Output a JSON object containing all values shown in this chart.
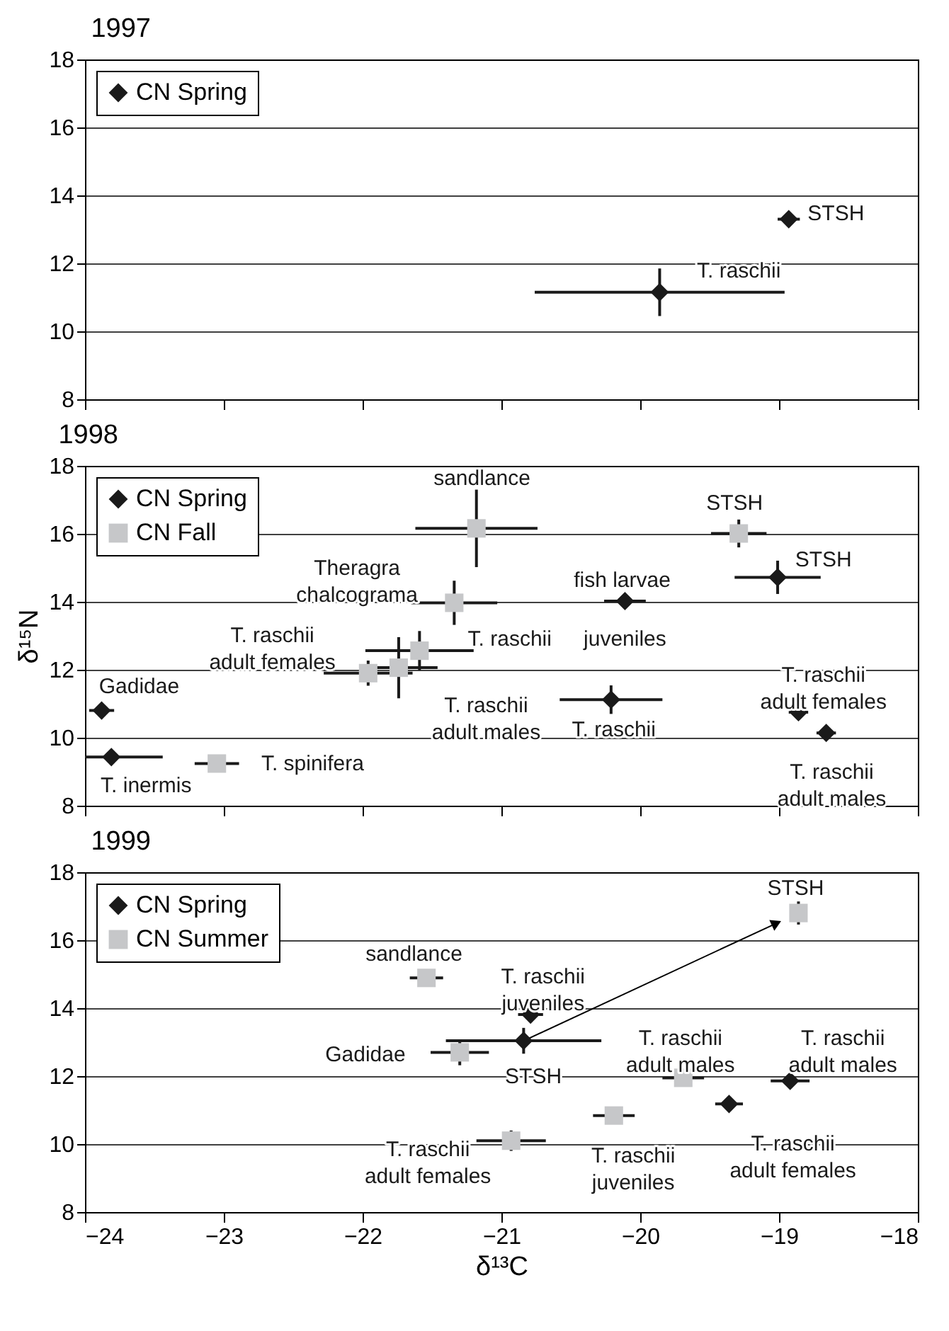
{
  "chart_data": [
    {
      "type": "scatter",
      "title": "1997",
      "xlim": [
        -24,
        -18
      ],
      "xticks": [
        -24,
        -23,
        -22,
        -21,
        -20,
        -19,
        -18
      ],
      "ylim": [
        8,
        18
      ],
      "yticks": [
        8,
        10,
        12,
        14,
        16,
        18
      ],
      "grid": "y",
      "legend": "top left",
      "tick_labels": "y",
      "series": [
        {
          "name": "CN Spring",
          "color": "#1a1a1a",
          "marker": "diamond",
          "x": [
            -19.86,
            -18.93
          ],
          "values": [
            11.15,
            13.3
          ],
          "errors": [
            0.7,
            null
          ],
          "xerrors": [
            0.9,
            0.08
          ]
        }
      ],
      "annotations": [
        "STSH",
        "T. raschii"
      ]
    },
    {
      "type": "scatter",
      "title": "1998",
      "ylabel": "δ¹⁵N",
      "xlim": [
        -24,
        -18
      ],
      "xticks": [
        -24,
        -23,
        -22,
        -21,
        -20,
        -19,
        -18
      ],
      "ylim": [
        8,
        18
      ],
      "yticks": [
        8,
        10,
        12,
        14,
        16,
        18
      ],
      "grid": "y",
      "legend": "top left",
      "tick_labels": "y",
      "series": [
        {
          "name": "CN Spring",
          "color": "#1a1a1a",
          "marker": "diamond",
          "x": [
            -23.88,
            -23.81,
            -20.11,
            -20.21,
            -19.01,
            -18.86,
            -18.66
          ],
          "values": [
            10.8,
            9.43,
            14.02,
            11.12,
            14.72,
            10.75,
            10.14
          ],
          "errors": [
            null,
            null,
            null,
            0.42,
            0.49,
            null,
            null
          ],
          "xerrors": [
            0.09,
            0.37,
            0.15,
            0.37,
            0.31,
            0.07,
            0.07
          ]
        },
        {
          "name": "CN Fall",
          "color": "#c6c7c9",
          "marker": "square",
          "x": [
            -21.18,
            -19.29,
            -21.34,
            -21.59,
            -21.96,
            -21.74,
            -23.05
          ],
          "values": [
            16.16,
            16.01,
            13.97,
            12.56,
            11.9,
            12.06,
            9.24
          ],
          "errors": [
            1.14,
            0.41,
            0.65,
            0.58,
            0.37,
            0.9,
            null
          ],
          "xerrors": [
            0.44,
            0.2,
            0.31,
            0.39,
            0.32,
            0.28,
            0.16
          ]
        }
      ],
      "annotations": [
        "sandlance",
        "STSH",
        "STSH",
        "Theragra\nchalcograma",
        "fish larvae",
        "T. raschii\nadult females",
        "T. raschii",
        "juveniles",
        "T. raschii\nadult females",
        "Gadidae",
        "T. raschii\nadult males",
        "T. raschii",
        "T. raschii\nadult males",
        "T. spinifera",
        "T. inermis"
      ]
    },
    {
      "type": "scatter",
      "title": "1999",
      "xlabel": "δ¹³C",
      "xlim": [
        -24,
        -18
      ],
      "xticks": [
        -24,
        -23,
        -22,
        -21,
        -20,
        -19,
        -18
      ],
      "ylim": [
        8,
        18
      ],
      "yticks": [
        8,
        10,
        12,
        14,
        16,
        18
      ],
      "grid": "y",
      "legend": "top left",
      "series": [
        {
          "name": "CN Spring",
          "color": "#1a1a1a",
          "marker": "diamond",
          "x": [
            -20.84,
            -20.79,
            -18.92,
            -19.36
          ],
          "values": [
            13.04,
            13.81,
            11.86,
            11.18
          ],
          "errors": [
            0.38,
            null,
            null,
            null
          ],
          "xerrors": [
            0.56,
            0.09,
            0.14,
            0.1
          ]
        },
        {
          "name": "CN Summer",
          "color": "#c6c7c9",
          "marker": "square",
          "x": [
            -18.86,
            -21.54,
            -21.3,
            -19.69,
            -20.19,
            -20.93
          ],
          "values": [
            16.8,
            14.89,
            12.7,
            11.95,
            10.84,
            10.1
          ],
          "errors": [
            0.34,
            null,
            0.38,
            null,
            null,
            0.3
          ],
          "xerrors": [
            null,
            0.12,
            0.21,
            0.15,
            0.15,
            0.25
          ]
        }
      ],
      "annotations": [
        {
          "text": "STSH",
          "x": -18.86,
          "y": 16.8
        },
        "sandlance",
        "T. raschii\njuveniles",
        "Gadidae",
        "STSH",
        "T. raschii\nadult males",
        "T. raschii\nadult males",
        "T. raschii\nadult females",
        "T. raschii\njuveniles",
        "T. raschii\nadult females"
      ]
    }
  ]
}
